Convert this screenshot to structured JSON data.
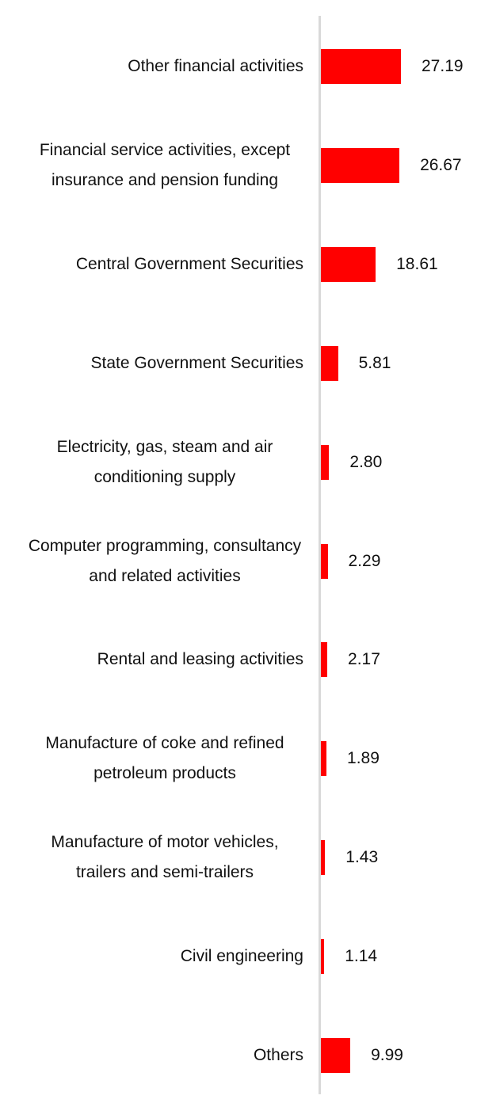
{
  "chart_data": {
    "type": "bar",
    "orientation": "horizontal",
    "categories": [
      "Other financial activities",
      "Financial service activities, except insurance and pension funding",
      "Central Government Securities",
      "State Government Securities",
      "Electricity, gas, steam and air conditioning supply",
      "Computer programming, consultancy and related activities",
      "Rental and leasing activities",
      "Manufacture of coke and refined petroleum products",
      "Manufacture of motor vehicles, trailers and semi-trailers",
      "Civil engineering",
      "Others"
    ],
    "values": [
      27.19,
      26.67,
      18.61,
      5.81,
      2.8,
      2.29,
      2.17,
      1.89,
      1.43,
      1.14,
      9.99
    ],
    "value_labels": [
      "27.19",
      "26.67",
      "18.61",
      "5.81",
      "2.80",
      "2.29",
      "2.17",
      "1.89",
      "1.43",
      "1.14",
      "9.99"
    ],
    "color": "#ff0000"
  }
}
